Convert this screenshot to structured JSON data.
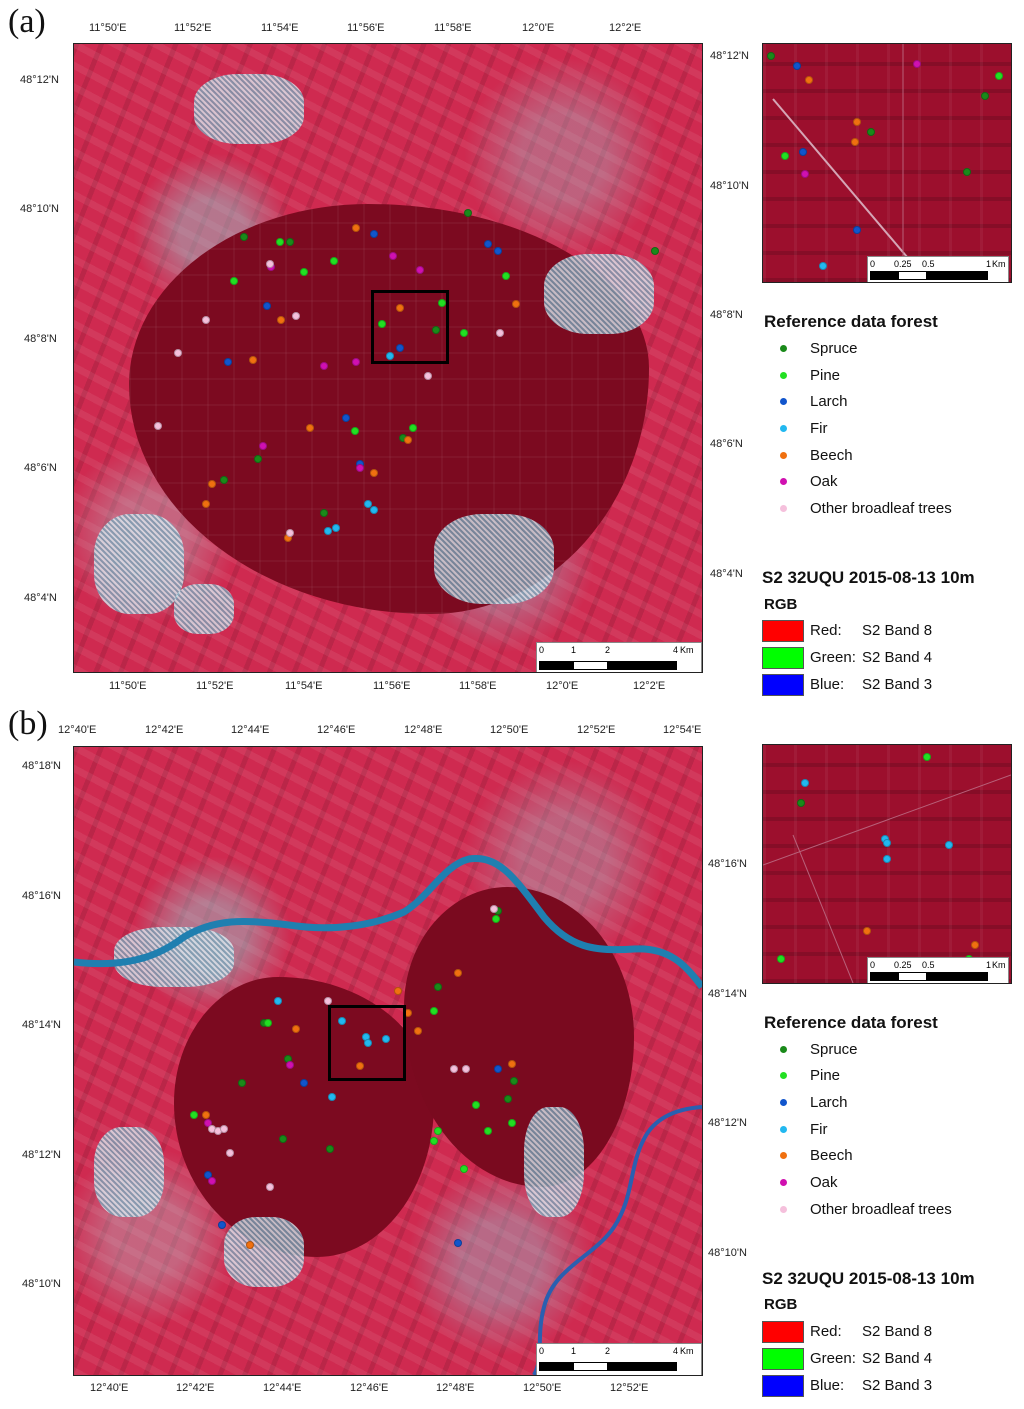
{
  "panels": [
    {
      "label": "(a)",
      "lon_labels": [
        "11°50'E",
        "11°52'E",
        "11°54'E",
        "11°56'E",
        "11°58'E",
        "12°0'E",
        "12°2'E"
      ],
      "lat_labels_left": [
        "48°12'N",
        "48°10'N",
        "48°8'N",
        "48°6'N",
        "48°4'N"
      ],
      "lat_labels_right": [
        "48°12'N",
        "48°10'N",
        "48°8'N",
        "48°6'N",
        "48°4'N"
      ],
      "scalebar": {
        "ticks": [
          "0",
          "1",
          "2",
          "4"
        ],
        "unit": "Km"
      },
      "inset_scalebar": {
        "ticks": [
          "0",
          "0.25",
          "0.5",
          "1"
        ],
        "unit": "Km"
      },
      "legend_title": "Reference data forest",
      "sensor_title": "S2  32UQU  2015-08-13  10m",
      "rgb_title": "RGB",
      "bands": [
        {
          "channel": "Red:",
          "band": "S2 Band 8",
          "color": "#ff0000"
        },
        {
          "channel": "Green:",
          "band": "S2 Band 4",
          "color": "#00ff00"
        },
        {
          "channel": "Blue:",
          "band": "S2 Band 3",
          "color": "#0000ff"
        }
      ]
    },
    {
      "label": "(b)",
      "lon_labels": [
        "12°40'E",
        "12°42'E",
        "12°44'E",
        "12°46'E",
        "12°48'E",
        "12°50'E",
        "12°52'E",
        "12°54'E"
      ],
      "lon_labels_bottom": [
        "12°40'E",
        "12°42'E",
        "12°44'E",
        "12°46'E",
        "12°48'E",
        "12°50'E",
        "12°52'E"
      ],
      "lat_labels_left": [
        "48°18'N",
        "48°16'N",
        "48°14'N",
        "48°12'N",
        "48°10'N"
      ],
      "lat_labels_right": [
        "48°16'N",
        "48°14'N",
        "48°12'N",
        "48°10'N"
      ],
      "scalebar": {
        "ticks": [
          "0",
          "1",
          "2",
          "4"
        ],
        "unit": "Km"
      },
      "inset_scalebar": {
        "ticks": [
          "0",
          "0.25",
          "0.5",
          "1"
        ],
        "unit": "Km"
      },
      "legend_title": "Reference data forest",
      "sensor_title": "S2  32UQU  2015-08-13  10m",
      "rgb_title": "RGB",
      "bands": [
        {
          "channel": "Red:",
          "band": "S2 Band 8",
          "color": "#ff0000"
        },
        {
          "channel": "Green:",
          "band": "S2 Band 4",
          "color": "#00ff00"
        },
        {
          "channel": "Blue:",
          "band": "S2 Band 3",
          "color": "#0000ff"
        }
      ]
    }
  ],
  "legend": [
    {
      "name": "Spruce",
      "color": "#1a8a1a"
    },
    {
      "name": "Pine",
      "color": "#22e022"
    },
    {
      "name": "Larch",
      "color": "#1155cc"
    },
    {
      "name": "Fir",
      "color": "#22b8f0"
    },
    {
      "name": "Beech",
      "color": "#f07010"
    },
    {
      "name": "Oak",
      "color": "#d010b0"
    },
    {
      "name": "Other broadleaf trees",
      "color": "#f5c0dc"
    }
  ]
}
